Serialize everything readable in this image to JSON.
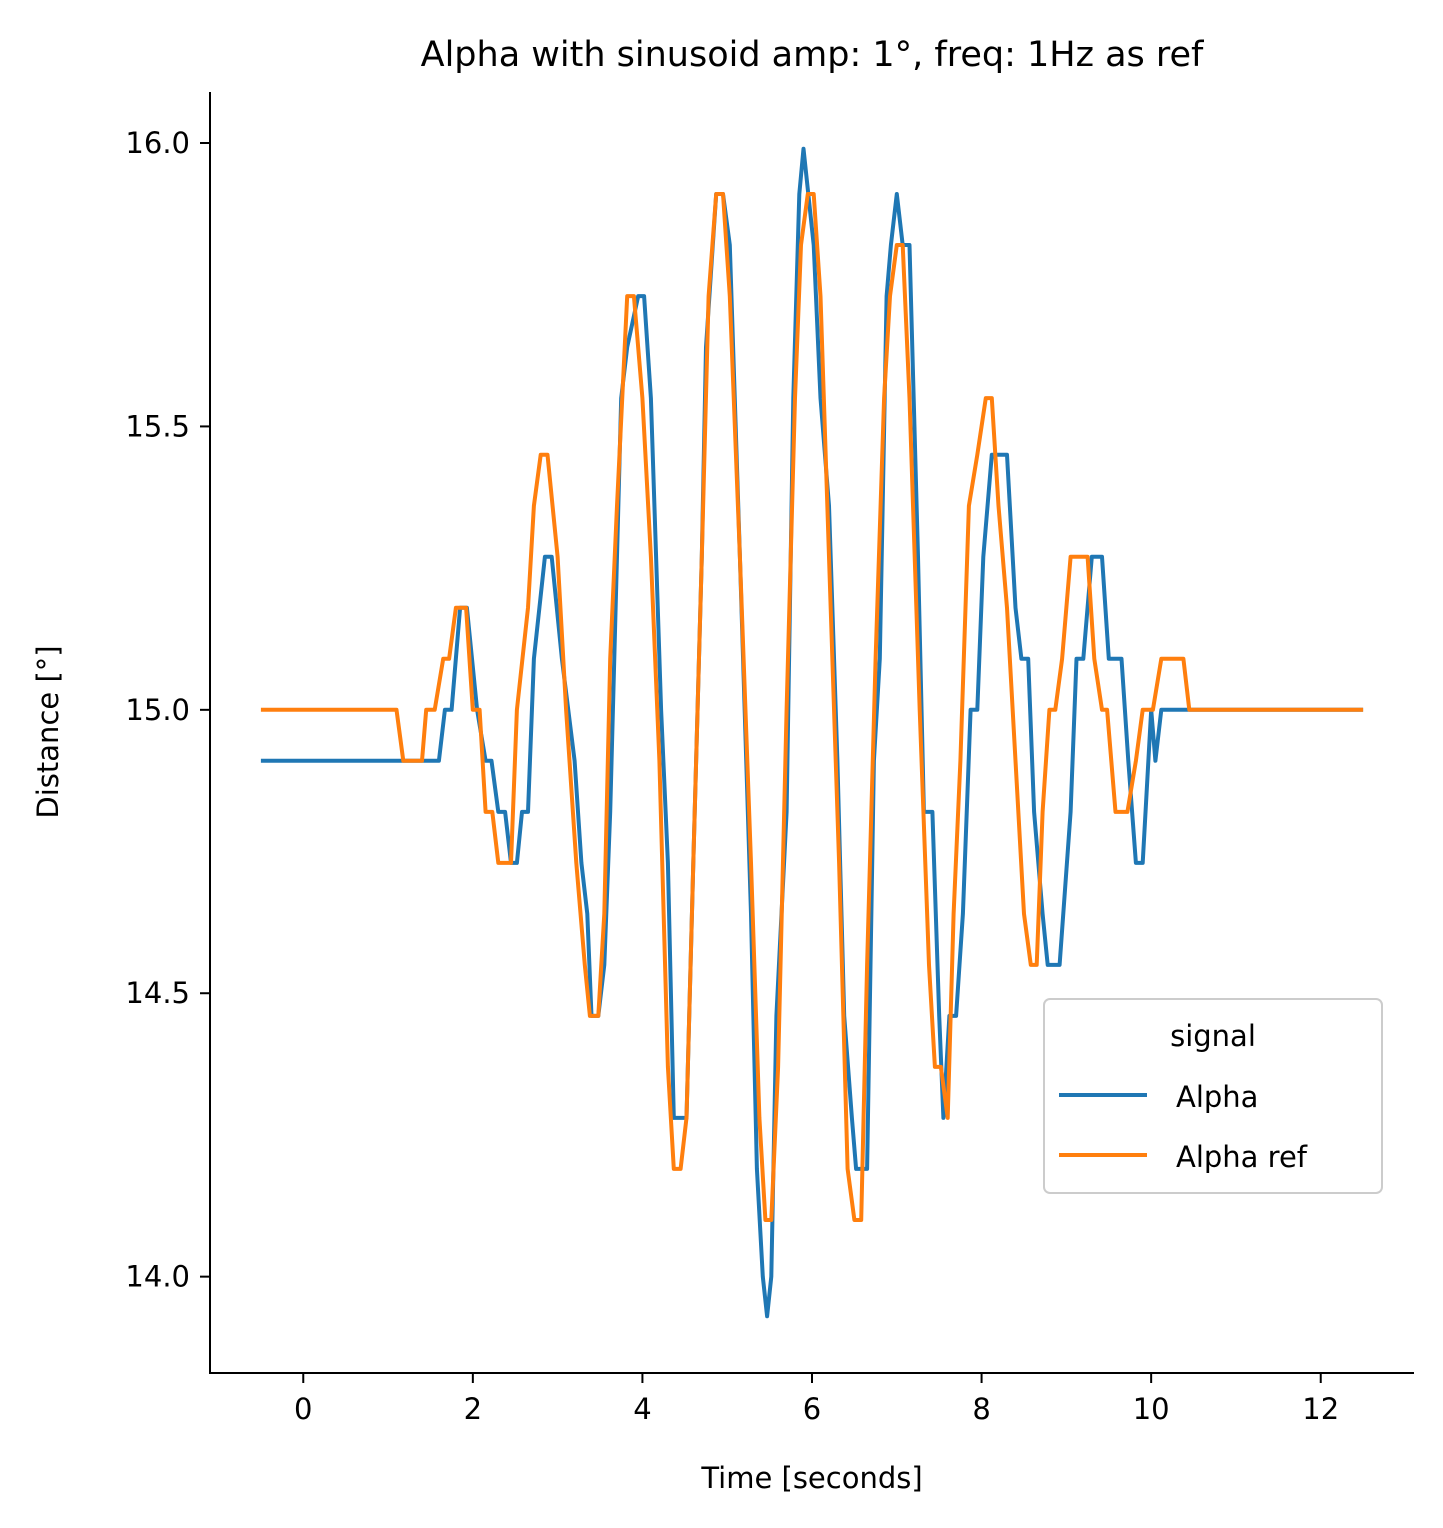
{
  "chart_data": {
    "type": "line",
    "title": "Alpha with sinusoid amp: 1°, freq: 1Hz as ref",
    "xlabel": "Time [seconds]",
    "ylabel": "Distance [°]",
    "xlim": [
      -1.1,
      13.1
    ],
    "ylim": [
      13.83,
      16.09
    ],
    "xticks": [
      0,
      2,
      4,
      6,
      8,
      10,
      12
    ],
    "xtick_labels": [
      "0",
      "2",
      "4",
      "6",
      "8",
      "10",
      "12"
    ],
    "yticks": [
      14.0,
      14.5,
      15.0,
      15.5,
      16.0
    ],
    "ytick_labels": [
      "14.0",
      "14.5",
      "15.0",
      "15.5",
      "16.0"
    ],
    "grid": false,
    "legend": {
      "title": "signal",
      "placement": "lower-right"
    },
    "series": [
      {
        "name": "Alpha",
        "color": "#1f77b4",
        "points": [
          [
            -0.5,
            14.91
          ],
          [
            1.6,
            14.91
          ],
          [
            1.67,
            15.0
          ],
          [
            1.75,
            15.0
          ],
          [
            1.85,
            15.18
          ],
          [
            1.93,
            15.18
          ],
          [
            2.05,
            15.0
          ],
          [
            2.15,
            14.91
          ],
          [
            2.22,
            14.91
          ],
          [
            2.3,
            14.82
          ],
          [
            2.38,
            14.82
          ],
          [
            2.45,
            14.73
          ],
          [
            2.52,
            14.73
          ],
          [
            2.58,
            14.82
          ],
          [
            2.65,
            14.82
          ],
          [
            2.72,
            15.09
          ],
          [
            2.85,
            15.27
          ],
          [
            2.93,
            15.27
          ],
          [
            3.05,
            15.09
          ],
          [
            3.2,
            14.91
          ],
          [
            3.28,
            14.73
          ],
          [
            3.35,
            14.64
          ],
          [
            3.4,
            14.46
          ],
          [
            3.48,
            14.46
          ],
          [
            3.55,
            14.55
          ],
          [
            3.62,
            14.82
          ],
          [
            3.75,
            15.55
          ],
          [
            3.82,
            15.64
          ],
          [
            3.95,
            15.73
          ],
          [
            4.02,
            15.73
          ],
          [
            4.1,
            15.55
          ],
          [
            4.22,
            15.0
          ],
          [
            4.3,
            14.73
          ],
          [
            4.37,
            14.28
          ],
          [
            4.52,
            14.28
          ],
          [
            4.6,
            14.73
          ],
          [
            4.7,
            15.27
          ],
          [
            4.75,
            15.64
          ],
          [
            4.87,
            15.91
          ],
          [
            4.95,
            15.91
          ],
          [
            5.03,
            15.82
          ],
          [
            5.15,
            15.27
          ],
          [
            5.28,
            14.64
          ],
          [
            5.35,
            14.19
          ],
          [
            5.42,
            14.0
          ],
          [
            5.47,
            13.93
          ],
          [
            5.52,
            14.0
          ],
          [
            5.58,
            14.46
          ],
          [
            5.7,
            14.82
          ],
          [
            5.78,
            15.55
          ],
          [
            5.85,
            15.91
          ],
          [
            5.9,
            15.99
          ],
          [
            6.02,
            15.82
          ],
          [
            6.1,
            15.55
          ],
          [
            6.2,
            15.36
          ],
          [
            6.3,
            14.91
          ],
          [
            6.38,
            14.46
          ],
          [
            6.47,
            14.28
          ],
          [
            6.52,
            14.19
          ],
          [
            6.65,
            14.19
          ],
          [
            6.73,
            14.91
          ],
          [
            6.8,
            15.09
          ],
          [
            6.88,
            15.73
          ],
          [
            6.93,
            15.82
          ],
          [
            7.0,
            15.91
          ],
          [
            7.07,
            15.82
          ],
          [
            7.15,
            15.82
          ],
          [
            7.25,
            15.27
          ],
          [
            7.32,
            14.82
          ],
          [
            7.42,
            14.82
          ],
          [
            7.5,
            14.46
          ],
          [
            7.55,
            14.28
          ],
          [
            7.62,
            14.46
          ],
          [
            7.7,
            14.46
          ],
          [
            7.78,
            14.64
          ],
          [
            7.87,
            15.0
          ],
          [
            7.95,
            15.0
          ],
          [
            8.02,
            15.27
          ],
          [
            8.12,
            15.45
          ],
          [
            8.3,
            15.45
          ],
          [
            8.4,
            15.18
          ],
          [
            8.47,
            15.09
          ],
          [
            8.55,
            15.09
          ],
          [
            8.62,
            14.82
          ],
          [
            8.72,
            14.64
          ],
          [
            8.78,
            14.55
          ],
          [
            8.92,
            14.55
          ],
          [
            9.05,
            14.82
          ],
          [
            9.12,
            15.09
          ],
          [
            9.2,
            15.09
          ],
          [
            9.3,
            15.27
          ],
          [
            9.42,
            15.27
          ],
          [
            9.5,
            15.09
          ],
          [
            9.65,
            15.09
          ],
          [
            9.73,
            14.91
          ],
          [
            9.82,
            14.73
          ],
          [
            9.9,
            14.73
          ],
          [
            10.0,
            15.0
          ],
          [
            10.05,
            14.91
          ],
          [
            10.12,
            15.0
          ],
          [
            12.5,
            15.0
          ]
        ]
      },
      {
        "name": "Alpha ref",
        "color": "#ff7f0e",
        "points": [
          [
            -0.5,
            15.0
          ],
          [
            1.1,
            15.0
          ],
          [
            1.18,
            14.91
          ],
          [
            1.4,
            14.91
          ],
          [
            1.45,
            15.0
          ],
          [
            1.55,
            15.0
          ],
          [
            1.65,
            15.09
          ],
          [
            1.72,
            15.09
          ],
          [
            1.8,
            15.18
          ],
          [
            1.92,
            15.18
          ],
          [
            2.0,
            15.0
          ],
          [
            2.08,
            15.0
          ],
          [
            2.15,
            14.82
          ],
          [
            2.23,
            14.82
          ],
          [
            2.3,
            14.73
          ],
          [
            2.45,
            14.73
          ],
          [
            2.52,
            15.0
          ],
          [
            2.65,
            15.18
          ],
          [
            2.72,
            15.36
          ],
          [
            2.8,
            15.45
          ],
          [
            2.88,
            15.45
          ],
          [
            3.0,
            15.27
          ],
          [
            3.1,
            15.0
          ],
          [
            3.22,
            14.73
          ],
          [
            3.32,
            14.55
          ],
          [
            3.38,
            14.46
          ],
          [
            3.48,
            14.46
          ],
          [
            3.55,
            14.64
          ],
          [
            3.62,
            15.09
          ],
          [
            3.7,
            15.36
          ],
          [
            3.82,
            15.73
          ],
          [
            3.9,
            15.73
          ],
          [
            4.0,
            15.55
          ],
          [
            4.1,
            15.27
          ],
          [
            4.2,
            14.91
          ],
          [
            4.3,
            14.37
          ],
          [
            4.37,
            14.19
          ],
          [
            4.45,
            14.19
          ],
          [
            4.52,
            14.28
          ],
          [
            4.6,
            14.73
          ],
          [
            4.7,
            15.27
          ],
          [
            4.78,
            15.73
          ],
          [
            4.87,
            15.91
          ],
          [
            4.95,
            15.91
          ],
          [
            5.03,
            15.73
          ],
          [
            5.15,
            15.27
          ],
          [
            5.28,
            14.73
          ],
          [
            5.38,
            14.28
          ],
          [
            5.45,
            14.1
          ],
          [
            5.52,
            14.1
          ],
          [
            5.6,
            14.37
          ],
          [
            5.7,
            15.0
          ],
          [
            5.8,
            15.55
          ],
          [
            5.87,
            15.82
          ],
          [
            5.95,
            15.91
          ],
          [
            6.02,
            15.91
          ],
          [
            6.1,
            15.73
          ],
          [
            6.2,
            15.27
          ],
          [
            6.32,
            14.73
          ],
          [
            6.42,
            14.19
          ],
          [
            6.5,
            14.1
          ],
          [
            6.58,
            14.1
          ],
          [
            6.65,
            14.55
          ],
          [
            6.75,
            15.09
          ],
          [
            6.85,
            15.55
          ],
          [
            6.92,
            15.73
          ],
          [
            7.0,
            15.82
          ],
          [
            7.07,
            15.82
          ],
          [
            7.15,
            15.55
          ],
          [
            7.27,
            15.0
          ],
          [
            7.38,
            14.55
          ],
          [
            7.45,
            14.37
          ],
          [
            7.52,
            14.37
          ],
          [
            7.6,
            14.28
          ],
          [
            7.67,
            14.64
          ],
          [
            7.75,
            14.91
          ],
          [
            7.85,
            15.36
          ],
          [
            7.95,
            15.45
          ],
          [
            8.05,
            15.55
          ],
          [
            8.12,
            15.55
          ],
          [
            8.2,
            15.36
          ],
          [
            8.3,
            15.18
          ],
          [
            8.4,
            14.91
          ],
          [
            8.5,
            14.64
          ],
          [
            8.58,
            14.55
          ],
          [
            8.65,
            14.55
          ],
          [
            8.72,
            14.82
          ],
          [
            8.8,
            15.0
          ],
          [
            8.87,
            15.0
          ],
          [
            8.95,
            15.09
          ],
          [
            9.05,
            15.27
          ],
          [
            9.25,
            15.27
          ],
          [
            9.33,
            15.09
          ],
          [
            9.42,
            15.0
          ],
          [
            9.48,
            15.0
          ],
          [
            9.58,
            14.82
          ],
          [
            9.72,
            14.82
          ],
          [
            9.82,
            14.91
          ],
          [
            9.9,
            15.0
          ],
          [
            10.02,
            15.0
          ],
          [
            10.12,
            15.09
          ],
          [
            10.38,
            15.09
          ],
          [
            10.45,
            15.0
          ],
          [
            12.5,
            15.0
          ]
        ]
      }
    ]
  }
}
